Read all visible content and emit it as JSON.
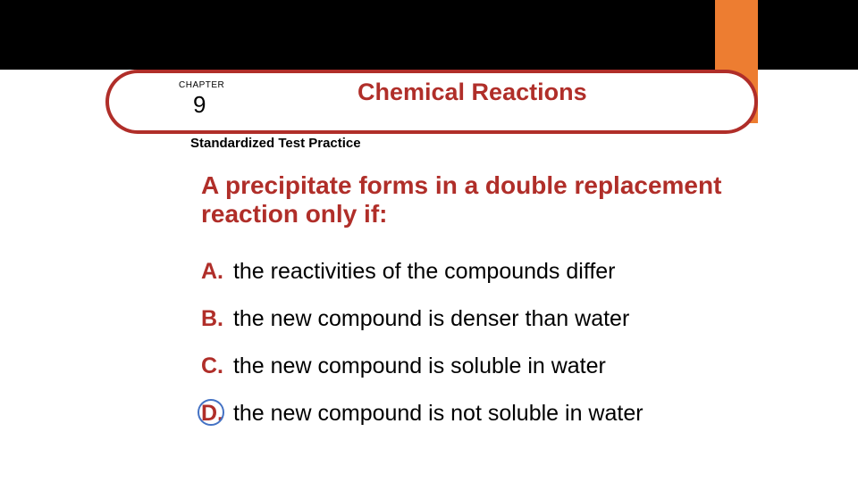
{
  "banner": {
    "chapter_label": "CHAPTER",
    "chapter_number": "9",
    "title": "Chemical Reactions",
    "subtitle": "Standardized Test Practice"
  },
  "question": "A precipitate forms in a double replacement reaction only if:",
  "options": [
    {
      "letter": "A.",
      "text": "the reactivities of the compounds differ",
      "circled": false
    },
    {
      "letter": "B.",
      "text": "the new compound is denser than water",
      "circled": false
    },
    {
      "letter": "C.",
      "text": "the new compound is soluble in water",
      "circled": false
    },
    {
      "letter": "D.",
      "text": "the new compound is not soluble in water",
      "circled": true
    }
  ],
  "colors": {
    "accent_red": "#b02e29",
    "orange_tab": "#ed7d31",
    "circle_blue": "#4472c4",
    "black": "#000000",
    "white": "#ffffff"
  }
}
